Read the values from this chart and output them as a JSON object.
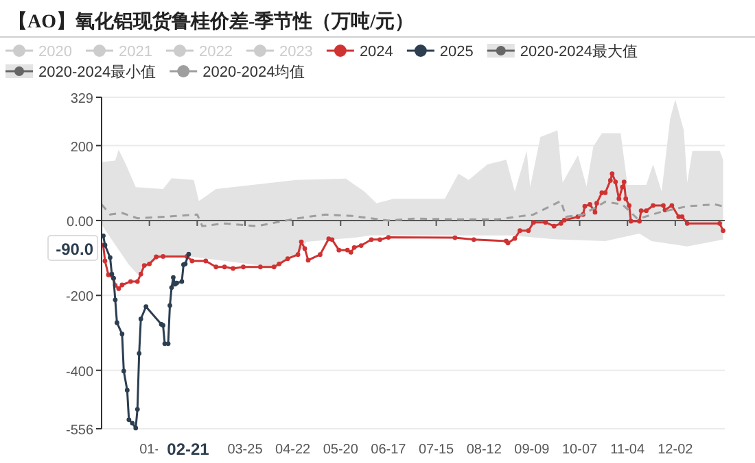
{
  "chart_data": {
    "type": "line",
    "title": "【AO】氧化铝现货鲁桂价差-季节性（万吨/元）",
    "xlim": [
      "--01-01",
      "--12-31"
    ],
    "ylim": [
      -556,
      329
    ],
    "yticks": [
      -556,
      -400,
      -200,
      {
        "value": 0,
        "label": "0.00"
      },
      200,
      329
    ],
    "xticks": [
      {
        "value": "--01-29",
        "label": "01-"
      },
      {
        "value": "--02-26",
        "label": null
      },
      {
        "value": "--03-25",
        "label": "03-25"
      },
      {
        "value": "--04-22",
        "label": "04-22"
      },
      {
        "value": "--05-20",
        "label": "05-20"
      },
      {
        "value": "--06-17",
        "label": "06-17"
      },
      {
        "value": "--07-15",
        "label": "07-15"
      },
      {
        "value": "--08-12",
        "label": "08-12"
      },
      {
        "value": "--09-09",
        "label": "09-09"
      },
      {
        "value": "--10-07",
        "label": "10-07"
      },
      {
        "value": "--11-04",
        "label": "11-04"
      },
      {
        "value": "--12-02",
        "label": "12-02"
      }
    ],
    "grid": "y",
    "legend": "top",
    "annotations": [
      "02-21",
      "-90.0"
    ],
    "series": [
      {
        "name": "2020",
        "color": "#cccccc"
      },
      {
        "name": "2021",
        "color": "#cccccc"
      },
      {
        "name": "2022",
        "color": "#cccccc"
      },
      {
        "name": "2023",
        "color": "#cccccc"
      },
      {
        "name": "2024",
        "color": "#d03232",
        "marker": "circle",
        "x": [
          "--01-02",
          "--01-03",
          "--01-05",
          "--01-08",
          "--01-09",
          "--01-11",
          "--01-13",
          "--01-18",
          "--01-22",
          "--01-24",
          "--01-26",
          "--01-29",
          "--02-02",
          "--02-06",
          "--02-20",
          "--02-23",
          "--03-02",
          "--03-08",
          "--03-13",
          "--03-18",
          "--03-24",
          "--04-03",
          "--04-11",
          "--04-14",
          "--04-19",
          "--04-25",
          "--04-27",
          "--04-29",
          "--05-01",
          "--05-08",
          "--05-13",
          "--05-15",
          "--05-19",
          "--05-24",
          "--05-26",
          "--05-28",
          "--06-01",
          "--06-07",
          "--06-12",
          "--06-17",
          "--07-26",
          "--08-06",
          "--08-25",
          "--08-26",
          "--08-30",
          "--09-02",
          "--09-07",
          "--09-10",
          "--09-17",
          "--09-22",
          "--09-26",
          "--09-28",
          "--10-06",
          "--10-09",
          "--10-10",
          "--10-13",
          "--10-16",
          "--10-17",
          "--10-20",
          "--10-22",
          "--10-25",
          "--10-26",
          "--10-28",
          "--10-30",
          "--11-01",
          "--11-02",
          "--11-03",
          "--11-05",
          "--11-06",
          "--11-11",
          "--11-12",
          "--11-15",
          "--11-19",
          "--11-25",
          "--11-26",
          "--11-30",
          "--12-04",
          "--12-06",
          "--12-09",
          "--12-28",
          "--12-30"
        ],
        "values": [
          -66,
          -108,
          -145,
          -154,
          -173,
          -182,
          -172,
          -163,
          -163,
          -143,
          -120,
          -116,
          -97,
          -96,
          -96,
          -108,
          -108,
          -124,
          -124,
          -128,
          -124,
          -124,
          -124,
          -116,
          -102,
          -91,
          -57,
          -75,
          -106,
          -91,
          -49,
          -51,
          -79,
          -79,
          -85,
          -72,
          -67,
          -51,
          -51,
          -45,
          -46,
          -51,
          -55,
          -60,
          -48,
          -27,
          -27,
          -5,
          -5,
          -15,
          -8,
          1,
          10,
          16,
          38,
          43,
          22,
          46,
          74,
          74,
          107,
          125,
          103,
          58,
          89,
          103,
          58,
          40,
          -2,
          -2,
          26,
          26,
          40,
          40,
          28,
          40,
          10,
          10,
          -8,
          -8,
          -27
        ]
      },
      {
        "name": "2025",
        "color": "#2c3e50",
        "marker": "circle",
        "x": [
          "--01-02",
          "--01-03",
          "--01-06",
          "--01-07",
          "--01-08",
          "--01-09",
          "--01-10",
          "--01-13",
          "--01-14",
          "--01-16",
          "--01-17",
          "--01-19",
          "--01-21",
          "--01-22",
          "--01-23",
          "--01-24",
          "--01-27",
          "--02-05",
          "--02-06",
          "--02-07",
          "--02-09",
          "--02-10",
          "--02-11",
          "--02-12",
          "--02-13",
          "--02-14",
          "--02-17",
          "--02-18",
          "--02-19",
          "--02-21"
        ],
        "values": [
          -41,
          -66,
          -99,
          -143,
          -154,
          -212,
          -273,
          -303,
          -402,
          -453,
          -532,
          -541,
          -554,
          -504,
          -355,
          -263,
          -230,
          -277,
          -280,
          -329,
          -329,
          -227,
          -179,
          -152,
          -170,
          -167,
          -163,
          -118,
          -116,
          -90
        ]
      },
      {
        "name": "2020-2024最大值",
        "color": "#e3e3e3",
        "type": "area",
        "x": [
          "--01-01",
          "--01-09",
          "--01-11",
          "--01-15",
          "--01-21",
          "--02-06",
          "--02-11",
          "--02-24",
          "--02-27",
          "--03-08",
          "--04-24",
          "--05-23",
          "--06-03",
          "--06-10",
          "--06-20",
          "--07-20",
          "--07-28",
          "--08-03",
          "--08-14",
          "--08-25",
          "--08-30",
          "--09-06",
          "--09-08",
          "--09-14",
          "--09-24",
          "--09-27",
          "--10-06",
          "--10-11",
          "--10-15",
          "--10-20",
          "--10-31",
          "--11-04",
          "--11-15",
          "--11-19",
          "--11-24",
          "--11-29",
          "--12-02",
          "--12-07",
          "--12-09",
          "--12-12",
          "--12-28",
          "--12-30"
        ],
        "values": [
          156,
          160,
          189,
          152,
          89,
          84,
          113,
          108,
          52,
          84,
          108,
          112,
          77,
          46,
          58,
          58,
          125,
          108,
          150,
          162,
          77,
          186,
          89,
          223,
          241,
          101,
          174,
          91,
          198,
          233,
          233,
          95,
          95,
          150,
          77,
          272,
          323,
          241,
          101,
          186,
          186,
          162
        ]
      },
      {
        "name": "2020-2024最小值",
        "color": "#e3e3e3",
        "type": "area",
        "x": [
          "--01-01",
          "--01-06",
          "--01-17",
          "--01-22",
          "--01-30",
          "--02-05",
          "--02-20",
          "--04-10",
          "--04-25",
          "--04-30",
          "--05-30",
          "--06-06",
          "--08-28",
          "--09-22",
          "--10-22",
          "--11-11",
          "--11-18",
          "--12-09",
          "--12-30"
        ],
        "values": [
          -10,
          -45,
          -118,
          -143,
          -115,
          -97,
          -95,
          -124,
          -91,
          -57,
          -45,
          -40,
          -40,
          -50,
          -55,
          -35,
          -55,
          -69,
          -51
        ]
      },
      {
        "name": "2020-2024均值",
        "color": "#9e9e9e",
        "line_style": "dashed",
        "x": [
          "--01-01",
          "--01-06",
          "--01-13",
          "--01-22",
          "--02-07",
          "--02-26",
          "--02-29",
          "--03-13",
          "--04-01",
          "--04-25",
          "--05-11",
          "--05-27",
          "--06-17",
          "--07-02",
          "--07-29",
          "--08-20",
          "--09-10",
          "--09-26",
          "--09-29",
          "--10-09",
          "--10-22",
          "--11-01",
          "--11-10",
          "--11-23",
          "--12-09",
          "--12-25",
          "--12-30"
        ],
        "values": [
          43,
          16,
          20,
          6,
          10,
          16,
          -15,
          -8,
          -15,
          6,
          16,
          12,
          0,
          5,
          3,
          3,
          16,
          52,
          10,
          16,
          50,
          43,
          4,
          22,
          38,
          43,
          38
        ]
      }
    ]
  }
}
